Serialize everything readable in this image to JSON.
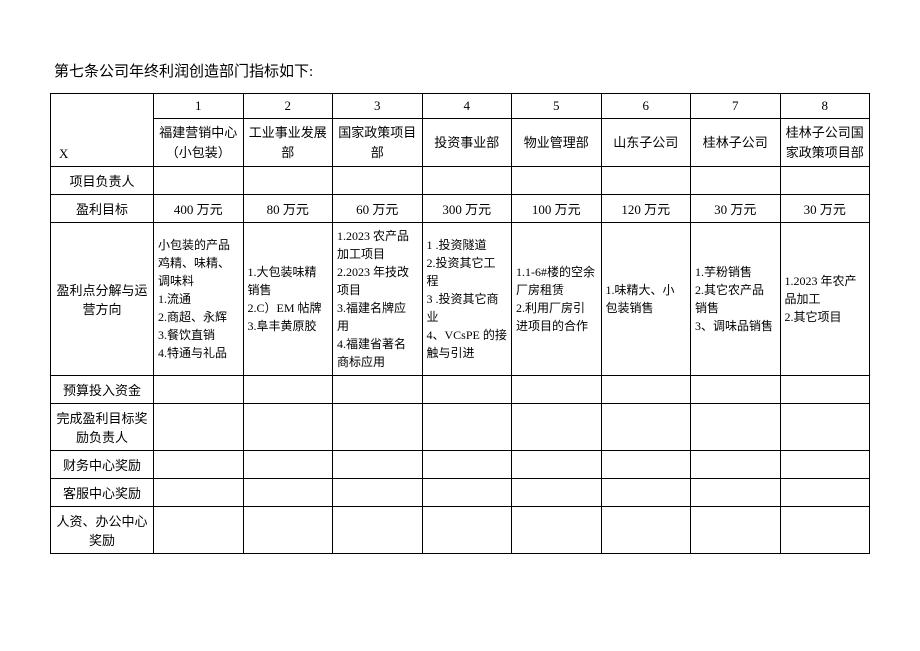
{
  "title": "第七条公司年终利润创造部门指标如下:",
  "cols": [
    "1",
    "2",
    "3",
    "4",
    "5",
    "6",
    "7",
    "8"
  ],
  "x_label": "X",
  "departments": [
    "福建营销中心（小包装）",
    "工业事业发展部",
    "国家政策项目部",
    "投资事业部",
    "物业管理部",
    "山东子公司",
    "桂林子公司",
    "桂林子公司国家政策项目部"
  ],
  "rows": {
    "project_leader": "项目负责人",
    "profit_target": "盈利目标",
    "breakdown": "盈利点分解与运营方向",
    "budget": "预算投入资金",
    "bonus_leader": "完成盈利目标奖励负责人",
    "finance_bonus": "财务中心奖励",
    "service_bonus": "客服中心奖励",
    "hr_bonus": "人资、办公中心奖励"
  },
  "profit_targets": [
    "400 万元",
    "80 万元",
    "60 万元",
    "300 万元",
    "100 万元",
    "120 万元",
    "30 万元",
    "30 万元"
  ],
  "breakdown_cells": [
    "小包装的产品鸡精、味精、调味料\n1.流通\n2.商超、永辉\n3.餐饮直销\n4.特通与礼品",
    "1.大包装味精销售\n2.C）EM 帖牌\n3.阜丰黄原胶",
    "1.2023 农产品加工项目\n2.2023 年技改项目\n3.福建名牌应用\n4.福建省著名商标应用",
    "1  .投资隧道\n2.投资其它工程\n3  .投资其它商业\n4、VCsPE 的接触与引进",
    "1.1-6#楼的空余厂房租赁\n2.利用厂房引进项目的合作",
    "1.味精大、小包装销售",
    "1.芋粉销售\n2.其它农产品销售\n3、调味品销售",
    "1.2023 年农产品加工\n2.其它项目"
  ]
}
